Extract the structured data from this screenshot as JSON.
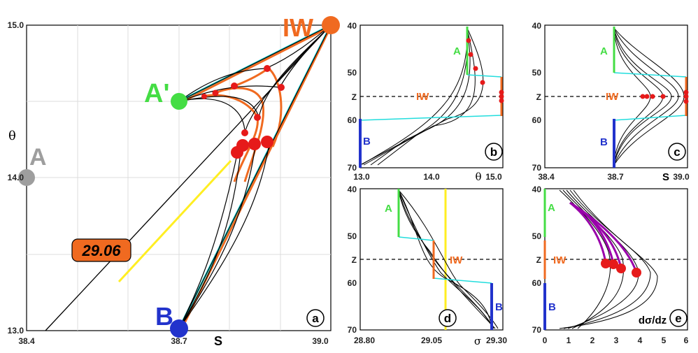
{
  "chart_data": [
    {
      "id": "a",
      "type": "scatter",
      "panel_label": "a",
      "xlabel": "S",
      "ylabel": "θ",
      "xlim": [
        38.4,
        39.0
      ],
      "ylim": [
        13.0,
        15.0
      ],
      "xticks": [
        "38.4",
        "38.7",
        "39.0"
      ],
      "yticks": [
        "13.0",
        "14.0",
        "15.0"
      ],
      "grid": true,
      "points": [
        {
          "label": "A",
          "S": 38.4,
          "theta": 14.0,
          "color": "#9e9e9e"
        },
        {
          "label": "A'",
          "S": 38.7,
          "theta": 14.5,
          "color": "#44dd44"
        },
        {
          "label": "B",
          "S": 38.7,
          "theta": 13.0,
          "color": "#2233cc"
        },
        {
          "label": "IW",
          "S": 39.0,
          "theta": 15.0,
          "color": "#f06a20"
        }
      ],
      "isopycnal_label": "29.06",
      "mixing_points": [
        {
          "S": 38.81,
          "theta": 14.17
        },
        {
          "S": 38.83,
          "theta": 14.22
        },
        {
          "S": 38.85,
          "theta": 14.22
        },
        {
          "S": 38.88,
          "theta": 14.22
        }
      ]
    },
    {
      "id": "b",
      "type": "line",
      "panel_label": "b",
      "xlabel": "θ",
      "ylabel": "Z",
      "xlim": [
        13.0,
        15.0
      ],
      "ylim": [
        40,
        70
      ],
      "xticks": [
        "13.0",
        "14.0",
        "15.0"
      ],
      "yticks": [
        "40",
        "50",
        "Z",
        "60",
        "70"
      ],
      "labels": [
        "A",
        "IW",
        "B"
      ]
    },
    {
      "id": "c",
      "type": "line",
      "panel_label": "c",
      "xlabel": "S",
      "ylabel": "Z",
      "xlim": [
        38.4,
        39.0
      ],
      "ylim": [
        40,
        70
      ],
      "xticks": [
        "38.4",
        "38.7",
        "39.0"
      ],
      "yticks": [
        "40",
        "50",
        "Z",
        "60",
        "70"
      ],
      "labels": [
        "A",
        "IW",
        "B"
      ]
    },
    {
      "id": "d",
      "type": "line",
      "panel_label": "d",
      "xlabel": "σ",
      "ylabel": "Z",
      "xlim": [
        28.8,
        29.3
      ],
      "ylim": [
        40,
        70
      ],
      "xticks": [
        "28.80",
        "29.05",
        "29.30"
      ],
      "yticks": [
        "40",
        "50",
        "Z",
        "60",
        "70"
      ],
      "labels": [
        "A",
        "IW",
        "B"
      ]
    },
    {
      "id": "e",
      "type": "line",
      "panel_label": "e",
      "xlabel": "dσ/dz",
      "ylabel": "Z",
      "xlim": [
        0,
        6
      ],
      "ylim": [
        40,
        70
      ],
      "xticks": [
        "0",
        "1",
        "2",
        "3",
        "4",
        "5",
        "6"
      ],
      "yticks": [
        "40",
        "50",
        "Z",
        "60",
        "70"
      ],
      "labels": [
        "A",
        "IW",
        "B"
      ]
    }
  ],
  "colors": {
    "A": "#44dd44",
    "IW": "#f06a20",
    "B": "#2233cc",
    "mix": "#e61a1a",
    "cyan": "#22dddd",
    "yellow": "#ffee22",
    "purple": "#9900aa",
    "grey": "#9e9e9e"
  }
}
